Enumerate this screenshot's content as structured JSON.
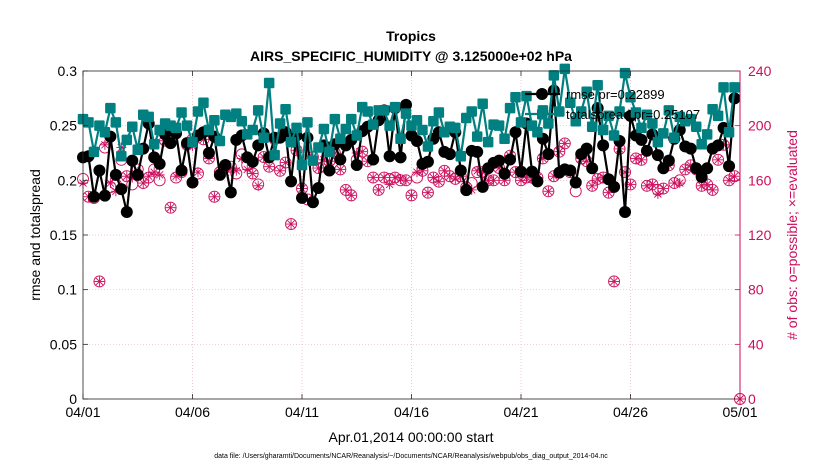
{
  "chart_data": {
    "type": "line",
    "title": "Tropics",
    "subtitle": "AIRS_SPECIFIC_HUMIDITY @ 3.125000e+02 hPa",
    "xlabel": "Apr.01,2014 00:00:00 start",
    "ylabel_left": "rmse and totalspread",
    "ylabel_right": "# of obs: o=possible; ×=evaluated",
    "footnote": "data file: /Users/gharamti/Documents/NCAR/Reanalysis/~/Documents/NCAR/Reanalysis/webpub/obs_diag_output_2014-04.nc",
    "xlim": [
      0,
      120
    ],
    "ylim_left": [
      0,
      0.3
    ],
    "ylim_right": [
      0,
      240
    ],
    "x_ticks": [
      {
        "value": 0,
        "label": "04/01"
      },
      {
        "value": 20,
        "label": "04/06"
      },
      {
        "value": 40,
        "label": "04/11"
      },
      {
        "value": 60,
        "label": "04/16"
      },
      {
        "value": 80,
        "label": "04/21"
      },
      {
        "value": 100,
        "label": "04/26"
      },
      {
        "value": 120,
        "label": "05/01"
      }
    ],
    "y_ticks_left": [
      {
        "value": 0,
        "label": "0"
      },
      {
        "value": 0.05,
        "label": "0.05"
      },
      {
        "value": 0.1,
        "label": "0.1"
      },
      {
        "value": 0.15,
        "label": "0.15"
      },
      {
        "value": 0.2,
        "label": "0.2"
      },
      {
        "value": 0.25,
        "label": "0.25"
      },
      {
        "value": 0.3,
        "label": "0.3"
      }
    ],
    "y_ticks_right": [
      {
        "value": 0,
        "label": "0"
      },
      {
        "value": 40,
        "label": "40"
      },
      {
        "value": 80,
        "label": "80"
      },
      {
        "value": 120,
        "label": "120"
      },
      {
        "value": 160,
        "label": "160"
      },
      {
        "value": 200,
        "label": "200"
      },
      {
        "value": 240,
        "label": "240"
      }
    ],
    "legend": {
      "position": "top-right",
      "entries": [
        {
          "label": "rmse pr=0.22899",
          "series": "rmse"
        },
        {
          "label": "totalspread pr=0.25107",
          "series": "totalspread"
        }
      ]
    },
    "colors": {
      "rmse": "#000000",
      "totalspread": "#008080",
      "obs": "#cc0e5d",
      "grid": "#e8b4c0"
    },
    "series": [
      {
        "name": "rmse",
        "axis": "left",
        "marker": "circle",
        "x": [
          0,
          1,
          2,
          3,
          4,
          5,
          6,
          7,
          8,
          9,
          10,
          11,
          12,
          13,
          14,
          15,
          16,
          17,
          18,
          19,
          20,
          21,
          22,
          23,
          24,
          25,
          26,
          27,
          28,
          29,
          30,
          31,
          32,
          33,
          34,
          35,
          36,
          37,
          38,
          39,
          40,
          41,
          42,
          43,
          44,
          45,
          46,
          47,
          48,
          49,
          50,
          51,
          52,
          53,
          54,
          55,
          56,
          57,
          58,
          59,
          60,
          61,
          62,
          63,
          64,
          65,
          66,
          67,
          68,
          69,
          70,
          71,
          72,
          73,
          74,
          75,
          76,
          77,
          78,
          79,
          80,
          81,
          82,
          83,
          84,
          85,
          86,
          87,
          88,
          89,
          90,
          91,
          92,
          93,
          94,
          95,
          96,
          97,
          98,
          99,
          100,
          101,
          102,
          103,
          104,
          105,
          106,
          107,
          108,
          109,
          110,
          111,
          112,
          113,
          114,
          115,
          116,
          117,
          118,
          119
        ],
        "values": [
          0.221,
          0.222,
          0.185,
          0.209,
          0.186,
          0.24,
          0.205,
          0.192,
          0.171,
          0.218,
          0.205,
          0.229,
          0.252,
          0.221,
          0.215,
          0.242,
          0.234,
          0.243,
          0.209,
          0.234,
          0.198,
          0.241,
          0.244,
          0.225,
          0.24,
          0.205,
          0.214,
          0.189,
          0.237,
          0.241,
          0.221,
          0.217,
          0.232,
          0.243,
          0.221,
          0.239,
          0.239,
          0.244,
          0.199,
          0.241,
          0.184,
          0.239,
          0.18,
          0.193,
          0.232,
          0.209,
          0.233,
          0.219,
          0.232,
          0.237,
          0.214,
          0.245,
          0.249,
          0.219,
          0.255,
          0.264,
          0.222,
          0.266,
          0.221,
          0.269,
          0.241,
          0.236,
          0.215,
          0.217,
          0.238,
          0.244,
          0.226,
          0.224,
          0.244,
          0.209,
          0.191,
          0.227,
          0.226,
          0.194,
          0.211,
          0.216,
          0.218,
          0.206,
          0.219,
          0.244,
          0.208,
          0.252,
          0.208,
          0.199,
          0.238,
          0.224,
          0.282,
          0.207,
          0.21,
          0.209,
          0.198,
          0.224,
          0.229,
          0.211,
          0.266,
          0.232,
          0.201,
          0.194,
          0.236,
          0.171,
          0.259,
          0.241,
          0.237,
          0.227,
          0.242,
          0.223,
          0.211,
          0.218,
          0.238,
          0.246,
          0.231,
          0.229,
          0.211,
          0.203,
          0.211,
          0.229,
          0.232,
          0.248,
          0.213,
          0.275
        ]
      },
      {
        "name": "totalspread",
        "axis": "left",
        "marker": "square",
        "x": [
          0,
          1,
          2,
          3,
          4,
          5,
          6,
          7,
          8,
          9,
          10,
          11,
          12,
          13,
          14,
          15,
          16,
          17,
          18,
          19,
          20,
          21,
          22,
          23,
          24,
          25,
          26,
          27,
          28,
          29,
          30,
          31,
          32,
          33,
          34,
          35,
          36,
          37,
          38,
          39,
          40,
          41,
          42,
          43,
          44,
          45,
          46,
          47,
          48,
          49,
          50,
          51,
          52,
          53,
          54,
          55,
          56,
          57,
          58,
          59,
          60,
          61,
          62,
          63,
          64,
          65,
          66,
          67,
          68,
          69,
          70,
          71,
          72,
          73,
          74,
          75,
          76,
          77,
          78,
          79,
          80,
          81,
          82,
          83,
          84,
          85,
          86,
          87,
          88,
          89,
          90,
          91,
          92,
          93,
          94,
          95,
          96,
          97,
          98,
          99,
          100,
          101,
          102,
          103,
          104,
          105,
          106,
          107,
          108,
          109,
          110,
          111,
          112,
          113,
          114,
          115,
          116,
          117,
          118,
          119
        ],
        "values": [
          0.256,
          0.253,
          0.226,
          0.25,
          0.244,
          0.266,
          0.253,
          0.222,
          0.237,
          0.249,
          0.228,
          0.26,
          0.258,
          0.233,
          0.246,
          0.252,
          0.25,
          0.248,
          0.262,
          0.25,
          0.235,
          0.263,
          0.271,
          0.246,
          0.255,
          0.236,
          0.26,
          0.258,
          0.261,
          0.254,
          0.242,
          0.246,
          0.264,
          0.239,
          0.289,
          0.223,
          0.252,
          0.265,
          0.235,
          0.248,
          0.214,
          0.253,
          0.218,
          0.23,
          0.247,
          0.226,
          0.256,
          0.238,
          0.247,
          0.256,
          0.241,
          0.267,
          0.263,
          0.251,
          0.264,
          0.264,
          0.25,
          0.267,
          0.238,
          0.261,
          0.25,
          0.255,
          0.246,
          0.231,
          0.254,
          0.262,
          0.244,
          0.249,
          0.248,
          0.222,
          0.257,
          0.263,
          0.24,
          0.27,
          0.235,
          0.251,
          0.25,
          0.238,
          0.266,
          0.276,
          0.253,
          0.277,
          0.25,
          0.244,
          0.264,
          0.252,
          0.296,
          0.263,
          0.302,
          0.271,
          0.254,
          0.263,
          0.281,
          0.249,
          0.287,
          0.246,
          0.259,
          0.241,
          0.263,
          0.298,
          0.276,
          0.262,
          0.248,
          0.26,
          0.252,
          0.235,
          0.243,
          0.264,
          0.239,
          0.258,
          0.254,
          0.256,
          0.249,
          0.233,
          0.242,
          0.265,
          0.259,
          0.285,
          0.244,
          0.285
        ]
      },
      {
        "name": "obs_possible",
        "axis": "right",
        "marker": "open-circle",
        "x": [
          0,
          1,
          2,
          3,
          4,
          5,
          6,
          7,
          8,
          9,
          10,
          11,
          12,
          13,
          14,
          15,
          16,
          17,
          18,
          19,
          20,
          21,
          22,
          23,
          24,
          25,
          26,
          27,
          28,
          29,
          30,
          31,
          32,
          33,
          34,
          35,
          36,
          37,
          38,
          39,
          40,
          41,
          42,
          43,
          44,
          45,
          46,
          47,
          48,
          49,
          50,
          51,
          52,
          53,
          54,
          55,
          56,
          57,
          58,
          59,
          60,
          61,
          62,
          63,
          64,
          65,
          66,
          67,
          68,
          69,
          70,
          71,
          72,
          73,
          74,
          75,
          76,
          77,
          78,
          79,
          80,
          81,
          82,
          83,
          84,
          85,
          86,
          87,
          88,
          89,
          90,
          91,
          92,
          93,
          94,
          95,
          96,
          97,
          98,
          99,
          100,
          101,
          102,
          103,
          104,
          105,
          106,
          107,
          108,
          109,
          110,
          111,
          112,
          113,
          114,
          115,
          116,
          117,
          118,
          119,
          120
        ],
        "values": [
          161,
          148,
          147,
          86,
          184,
          155,
          157,
          175,
          163,
          157,
          168,
          158,
          162,
          168,
          160,
          189,
          140,
          162,
          166,
          186,
          190,
          165,
          190,
          176,
          148,
          166,
          170,
          170,
          165,
          179,
          171,
          165,
          157,
          177,
          170,
          190,
          167,
          173,
          128,
          182,
          154,
          146,
          177,
          169,
          170,
          174,
          180,
          168,
          153,
          149,
          175,
          181,
          174,
          162,
          153,
          162,
          161,
          162,
          160,
          160,
          149,
          162,
          167,
          151,
          162,
          159,
          167,
          163,
          161,
          163,
          155,
          158,
          166,
          166,
          160,
          160,
          169,
          160,
          178,
          166,
          160,
          162,
          162,
          162,
          176,
          152,
          163,
          181,
          187,
          166,
          152,
          176,
          174,
          156,
          161,
          162,
          151,
          86,
          183,
          166,
          157,
          176,
          175,
          156,
          157,
          153,
          154,
          171,
          158,
          160,
          168,
          171,
          168,
          156,
          157,
          153,
          175,
          186,
          160,
          163,
          0
        ]
      },
      {
        "name": "obs_evaluated",
        "axis": "right",
        "marker": "asterisk",
        "x": [
          0,
          1,
          2,
          3,
          4,
          5,
          6,
          7,
          8,
          9,
          10,
          11,
          12,
          13,
          14,
          15,
          16,
          17,
          18,
          19,
          20,
          21,
          22,
          23,
          24,
          25,
          26,
          27,
          28,
          29,
          30,
          31,
          32,
          33,
          34,
          35,
          36,
          37,
          38,
          39,
          40,
          41,
          42,
          43,
          44,
          45,
          46,
          47,
          48,
          49,
          50,
          51,
          52,
          53,
          54,
          55,
          56,
          57,
          58,
          59,
          60,
          61,
          62,
          63,
          64,
          65,
          66,
          67,
          68,
          69,
          70,
          71,
          72,
          73,
          74,
          75,
          76,
          77,
          78,
          79,
          80,
          81,
          82,
          83,
          84,
          85,
          86,
          87,
          88,
          89,
          90,
          91,
          92,
          93,
          94,
          95,
          96,
          97,
          98,
          99,
          100,
          101,
          102,
          103,
          104,
          105,
          106,
          107,
          108,
          109,
          110,
          111,
          112,
          113,
          114,
          115,
          116,
          117,
          118,
          119,
          120
        ],
        "values": [
          158,
          148,
          148,
          86,
          186,
          158,
          152,
          184,
          163,
          162,
          166,
          158,
          163,
          166,
          164,
          189,
          140,
          163,
          166,
          186,
          185,
          166,
          190,
          176,
          148,
          166,
          166,
          169,
          167,
          176,
          168,
          165,
          156,
          177,
          170,
          190,
          167,
          173,
          128,
          182,
          154,
          146,
          177,
          169,
          175,
          174,
          180,
          168,
          153,
          149,
          180,
          181,
          174,
          162,
          153,
          162,
          157,
          162,
          161,
          160,
          149,
          166,
          167,
          151,
          162,
          159,
          167,
          163,
          161,
          163,
          155,
          153,
          167,
          166,
          160,
          160,
          169,
          160,
          178,
          166,
          160,
          162,
          161,
          162,
          176,
          152,
          163,
          181,
          187,
          166,
          158,
          176,
          174,
          156,
          161,
          162,
          151,
          86,
          183,
          166,
          157,
          176,
          175,
          156,
          157,
          150,
          154,
          171,
          158,
          158,
          168,
          171,
          168,
          156,
          157,
          153,
          175,
          186,
          160,
          163,
          0
        ]
      }
    ]
  }
}
